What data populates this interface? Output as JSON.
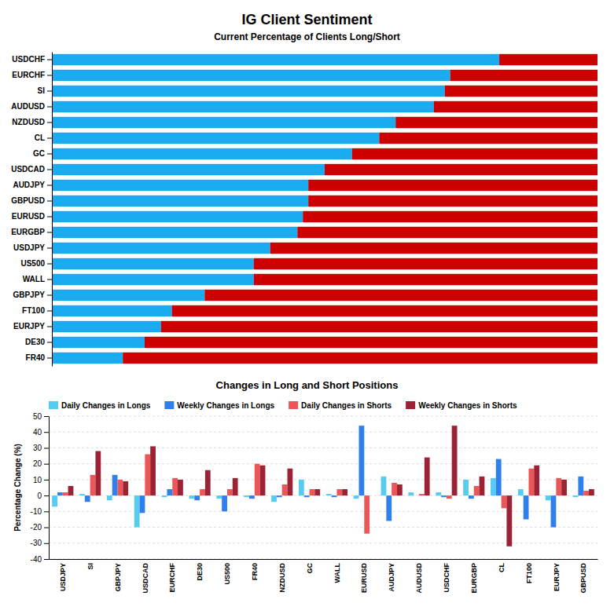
{
  "chart_data": [
    {
      "type": "bar",
      "orientation": "horizontal",
      "stacked": true,
      "title": "IG Client Sentiment",
      "subtitle": "Current Percentage of Clients Long/Short",
      "categories": [
        "USDCHF",
        "EURCHF",
        "SI",
        "AUDUSD",
        "NZDUSD",
        "CL",
        "GC",
        "USDCAD",
        "AUDJPY",
        "GBPUSD",
        "EURUSD",
        "EURGBP",
        "USDJPY",
        "US500",
        "WALL",
        "GBPJPY",
        "FT100",
        "EURJPY",
        "DE30",
        "FR40"
      ],
      "series": [
        {
          "color": "#1AABF0",
          "values": [
            82,
            73,
            72,
            70,
            63,
            60,
            55,
            50,
            47,
            47,
            46,
            45,
            40,
            37,
            37,
            28,
            22,
            20,
            17,
            13
          ]
        },
        {
          "color": "#CC0000",
          "values": [
            18,
            27,
            28,
            30,
            37,
            40,
            45,
            50,
            53,
            53,
            54,
            55,
            60,
            63,
            63,
            72,
            78,
            80,
            83,
            87
          ]
        }
      ],
      "xlim": [
        0,
        100
      ],
      "tick_labels": "y"
    },
    {
      "type": "bar",
      "title": "Changes in Long and Short Positions",
      "ylabel": "Percentage Change (%)",
      "categories": [
        "USDJPY",
        "SI",
        "GBPJPY",
        "USDCAD",
        "EURCHF",
        "DE30",
        "US500",
        "FR40",
        "NZDUSD",
        "GC",
        "WALL",
        "EURUSD",
        "AUDJPY",
        "AUDUSD",
        "USDCHF",
        "EURGBP",
        "CL",
        "FT100",
        "EURJPY",
        "GBPUSD"
      ],
      "series": [
        {
          "name": "Daily Changes in Longs",
          "color": "#56CCF2",
          "values": [
            -7,
            1,
            -3,
            -20,
            -1,
            -2,
            -2,
            -1,
            -4,
            10,
            1,
            -2,
            12,
            2,
            2,
            10,
            11,
            4,
            -3,
            -1
          ]
        },
        {
          "name": "Weekly Changes in Longs",
          "color": "#2F80ED",
          "values": [
            2,
            -4,
            13,
            -11,
            4,
            -3,
            -10,
            -2,
            -1,
            -1,
            -1,
            44,
            -16,
            0,
            -1,
            -2,
            23,
            -15,
            -20,
            12
          ]
        },
        {
          "name": "Daily Changes in Shorts",
          "color": "#EB5757",
          "values": [
            2,
            13,
            10,
            26,
            11,
            4,
            4,
            20,
            7,
            4,
            4,
            -24,
            8,
            1,
            -2,
            6,
            -8,
            17,
            11,
            3
          ]
        },
        {
          "name": "Weekly Changes in Shorts",
          "color": "#9B2335",
          "values": [
            6,
            28,
            9,
            31,
            10,
            16,
            11,
            19,
            17,
            4,
            4,
            0,
            7,
            24,
            44,
            12,
            -32,
            19,
            10,
            4
          ]
        }
      ],
      "ylim": [
        -40,
        50
      ],
      "yticks": [
        -40,
        -30,
        -20,
        -10,
        0,
        10,
        20,
        30,
        40,
        50
      ],
      "grid": true,
      "legend": "upper left"
    }
  ]
}
